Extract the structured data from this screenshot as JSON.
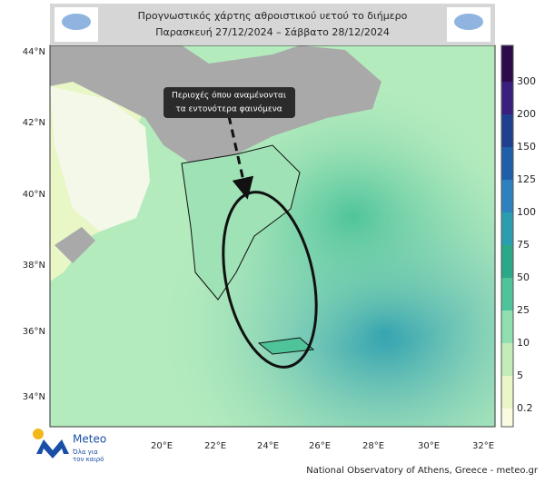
{
  "header": {
    "title": "Προγνωστικός χάρτης αθροιστικού υετού το διήμερο",
    "subtitle": "Παρασκευή 27/12/2024 – Σάββατο 28/12/2024"
  },
  "annotation": {
    "lines": [
      "Περιοχές όπου αναμένονται",
      "τα εντονότερα φαινόμενα"
    ]
  },
  "map": {
    "lat_labels": [
      "44°N",
      "42°N",
      "40°N",
      "38°N",
      "36°N",
      "34°N"
    ],
    "lon_labels": [
      "20°E",
      "22°E",
      "24°E",
      "26°E",
      "28°E",
      "30°E",
      "32°E"
    ]
  },
  "legend": {
    "levels": [
      300,
      200,
      150,
      125,
      100,
      75,
      50,
      25,
      10,
      5,
      0.2
    ],
    "colors": [
      "#2d0a4a",
      "#3b1f7c",
      "#1f3f8f",
      "#1f5ea9",
      "#2f80bf",
      "#2a9db0",
      "#2aa888",
      "#4fc49a",
      "#8fdfb1",
      "#c3ecb9",
      "#ebf6c7",
      "#fbfbe2"
    ]
  },
  "logo": {
    "name": "Meteo",
    "tagline": [
      "Όλα για",
      "τον καιρό"
    ]
  },
  "footer": "National Observatory of Athens, Greece - meteo.gr"
}
